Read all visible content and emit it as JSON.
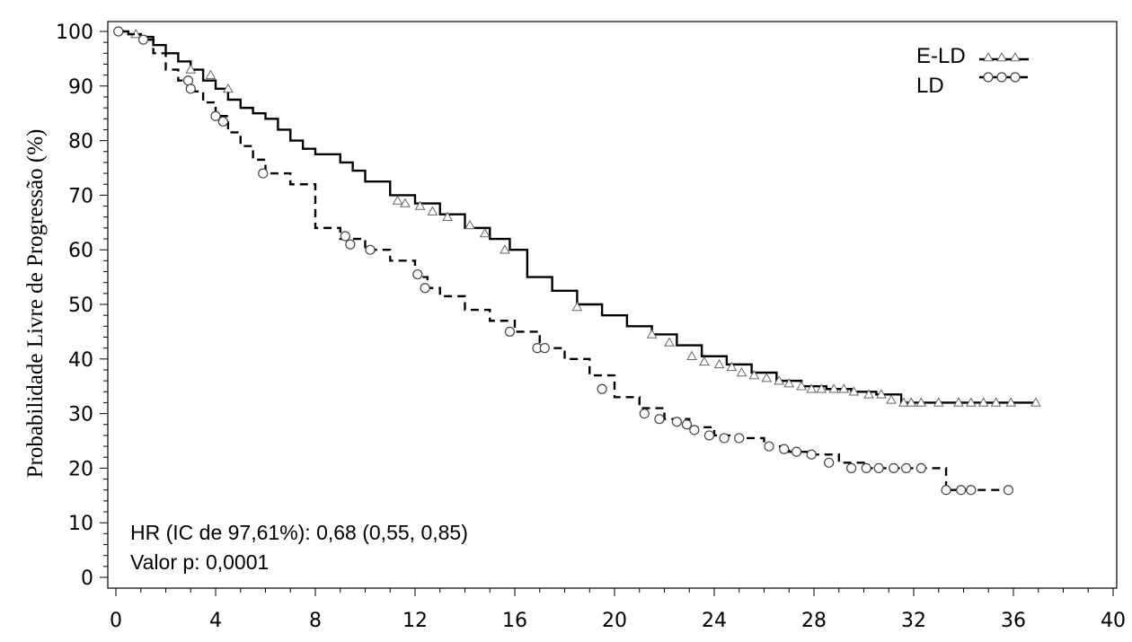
{
  "chart_data": {
    "type": "line",
    "title": "",
    "xlabel": "",
    "ylabel": "Probabilidade Livre de Progressão (%)",
    "xlim": [
      0,
      40
    ],
    "ylim": [
      0,
      100
    ],
    "x_ticks": [
      0,
      4,
      8,
      12,
      16,
      20,
      24,
      28,
      32,
      36,
      40
    ],
    "y_ticks": [
      0,
      10,
      20,
      30,
      40,
      50,
      60,
      70,
      80,
      90,
      100
    ],
    "grid": false,
    "legend_position": "top-right",
    "annotations": [
      "HR (IC de 97,61%): 0,68 (0,55, 0,85)",
      "Valor p: 0,0001"
    ],
    "series": [
      {
        "name": "E-LD",
        "line_style": "solid",
        "marker": "triangle",
        "color": "#000000",
        "x": [
          0,
          0.5,
          1.0,
          1.5,
          2.0,
          2.5,
          3.0,
          3.5,
          4.0,
          4.5,
          5.0,
          5.5,
          6.0,
          6.5,
          7.0,
          7.5,
          8.0,
          9.0,
          9.5,
          10.0,
          11.0,
          12.0,
          13.0,
          14.0,
          15.0,
          15.8,
          16.5,
          17.5,
          18.5,
          19.5,
          20.5,
          21.5,
          22.5,
          23.5,
          24.5,
          25.5,
          26.5,
          27.5,
          28.5,
          29.5,
          30.5,
          31.5,
          32.5,
          33.5,
          34.5,
          35.5,
          36.5,
          37.0
        ],
        "y": [
          100,
          99.5,
          99,
          97.5,
          96,
          94.5,
          93,
          91,
          89.5,
          87.5,
          86,
          85,
          84,
          82,
          80,
          78.5,
          77.5,
          76,
          74.5,
          72.5,
          70,
          68.5,
          66.5,
          64,
          62,
          60,
          55,
          52.5,
          50,
          48,
          46,
          44.5,
          42.5,
          40.5,
          39,
          37.5,
          36,
          35,
          34.5,
          34,
          33.5,
          32,
          32,
          32,
          32,
          32,
          32,
          32
        ],
        "censored_x": [
          0.8,
          3.0,
          3.8,
          4.5,
          11.3,
          11.6,
          12.2,
          12.7,
          13.3,
          14.2,
          14.8,
          15.6,
          18.5,
          21.5,
          22.2,
          23.1,
          23.6,
          24.2,
          24.7,
          25.1,
          25.6,
          26.1,
          26.6,
          27.0,
          27.5,
          27.9,
          28.3,
          28.8,
          29.2,
          29.6,
          30.2,
          30.7,
          31.1,
          31.6,
          31.9,
          32.3,
          33.0,
          33.8,
          34.3,
          34.8,
          35.3,
          35.9,
          36.9
        ],
        "censored_y": [
          99.5,
          93,
          92,
          89.5,
          69,
          68.5,
          68,
          67,
          66,
          64.5,
          63,
          60,
          49.5,
          44.5,
          43,
          40.5,
          39.5,
          39,
          38.5,
          37.5,
          37,
          36.5,
          36,
          35.5,
          35,
          34.5,
          34.5,
          34.5,
          34.5,
          34,
          33.5,
          33.5,
          32.5,
          32,
          32,
          32,
          32,
          32,
          32,
          32,
          32,
          32,
          32
        ]
      },
      {
        "name": "LD",
        "line_style": "dashed",
        "marker": "circle",
        "color": "#000000",
        "x": [
          0,
          0.5,
          1.0,
          1.5,
          2.0,
          2.5,
          3.0,
          3.5,
          4.0,
          4.5,
          5.0,
          5.5,
          6.0,
          7.0,
          8.0,
          9.0,
          10.0,
          11.0,
          12.0,
          12.5,
          13.0,
          14.0,
          15.0,
          16.0,
          17.0,
          18.0,
          19.0,
          20.0,
          21.0,
          22.0,
          23.0,
          24.0,
          25.0,
          26.0,
          27.0,
          28.0,
          29.0,
          30.0,
          31.0,
          32.0,
          33.0,
          33.3,
          34.0,
          35.0,
          35.8
        ],
        "y": [
          100,
          99.5,
          98.5,
          96,
          93,
          91,
          89,
          87,
          84.5,
          81.5,
          79,
          76.5,
          74,
          72,
          64,
          62,
          60,
          58,
          55,
          53,
          51.5,
          49,
          47,
          45,
          42,
          40,
          37,
          33,
          31,
          29,
          27.5,
          26,
          25.5,
          24,
          23,
          22.5,
          21,
          20,
          20,
          20,
          20,
          16,
          16,
          16,
          16
        ],
        "censored_x": [
          0.1,
          1.1,
          2.9,
          3.0,
          4.0,
          4.3,
          5.9,
          9.2,
          9.4,
          10.2,
          12.1,
          12.4,
          15.8,
          16.9,
          17.2,
          19.5,
          21.2,
          21.8,
          22.5,
          22.9,
          23.2,
          23.8,
          24.4,
          25.0,
          26.2,
          26.8,
          27.3,
          27.9,
          28.6,
          29.5,
          30.1,
          30.6,
          31.2,
          31.7,
          32.3,
          33.3,
          33.9,
          34.3,
          35.8
        ],
        "censored_y": [
          100,
          98.5,
          91,
          89.5,
          84.5,
          83.5,
          74,
          62.5,
          61,
          60,
          55.5,
          53,
          45,
          42,
          42,
          34.5,
          30,
          29,
          28.5,
          28,
          27,
          26,
          25.5,
          25.5,
          24,
          23.5,
          23,
          22.5,
          21,
          20,
          20,
          20,
          20,
          20,
          20,
          16,
          16,
          16,
          16
        ]
      }
    ]
  }
}
